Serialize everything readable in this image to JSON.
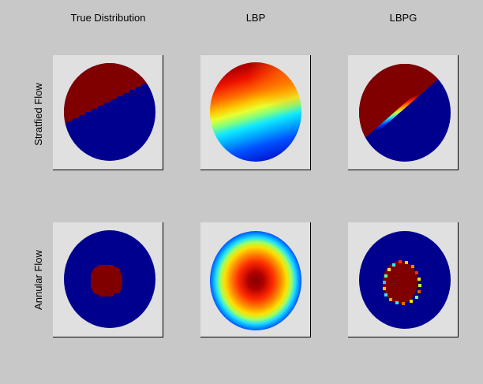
{
  "columns": [
    "True Distribution",
    "LBP",
    "LBPG"
  ],
  "rows": [
    "Stratfied Flow",
    "Annular Flow"
  ],
  "colormap": "jet",
  "colors": {
    "figure_background": "#c8c8c8",
    "panel_background": "#e0e0e0",
    "dark_red": "#800000",
    "dark_blue": "#00008f"
  }
}
